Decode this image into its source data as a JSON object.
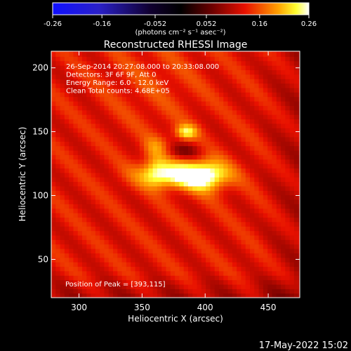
{
  "chart_data": {
    "type": "heatmap",
    "title": "Reconstructed RHESSI Image",
    "colorbar": {
      "ticks": [
        "-0.26",
        "-0.16",
        "-0.052",
        "0.052",
        "0.16",
        "0.26"
      ],
      "range": [
        -0.26,
        0.26
      ],
      "units_label": "(photons cm⁻² s⁻¹ asec⁻²)",
      "colormap": "blue-black-red-yellow-white"
    },
    "xlabel": "Heliocentric X (arcsec)",
    "ylabel": "Heliocentric Y (arcsec)",
    "xlim": [
      278,
      475
    ],
    "ylim": [
      20,
      213
    ],
    "xticks": [
      "300",
      "350",
      "400",
      "450"
    ],
    "yticks": [
      "200",
      "150",
      "100",
      "50"
    ],
    "annotations": [
      "26-Sep-2014 20:27:08.000 to 20:33:08.000",
      "Detectors: 3F 6F 9F, Att 0",
      "Energy Range: 6.0 - 12.0 keV",
      "Clean     Total counts: 4.68E+05"
    ],
    "peak_label": "Position of Peak = [393,115]",
    "peak": [
      393,
      115
    ],
    "sources": [
      {
        "x": 380,
        "y": 116,
        "sx": 22,
        "sy": 7,
        "amp": 0.13
      },
      {
        "x": 401,
        "y": 116,
        "sx": 12,
        "sy": 9,
        "amp": 0.09
      },
      {
        "x": 361,
        "y": 122,
        "sx": 7,
        "sy": 9,
        "amp": 0.06
      },
      {
        "x": 385,
        "y": 150,
        "sx": 6,
        "sy": 4,
        "amp": 0.1
      },
      {
        "x": 360,
        "y": 138,
        "sx": 7,
        "sy": 6,
        "amp": 0.04
      }
    ],
    "background": 0.13
  },
  "footer_timestamp": "17-May-2022 15:02"
}
